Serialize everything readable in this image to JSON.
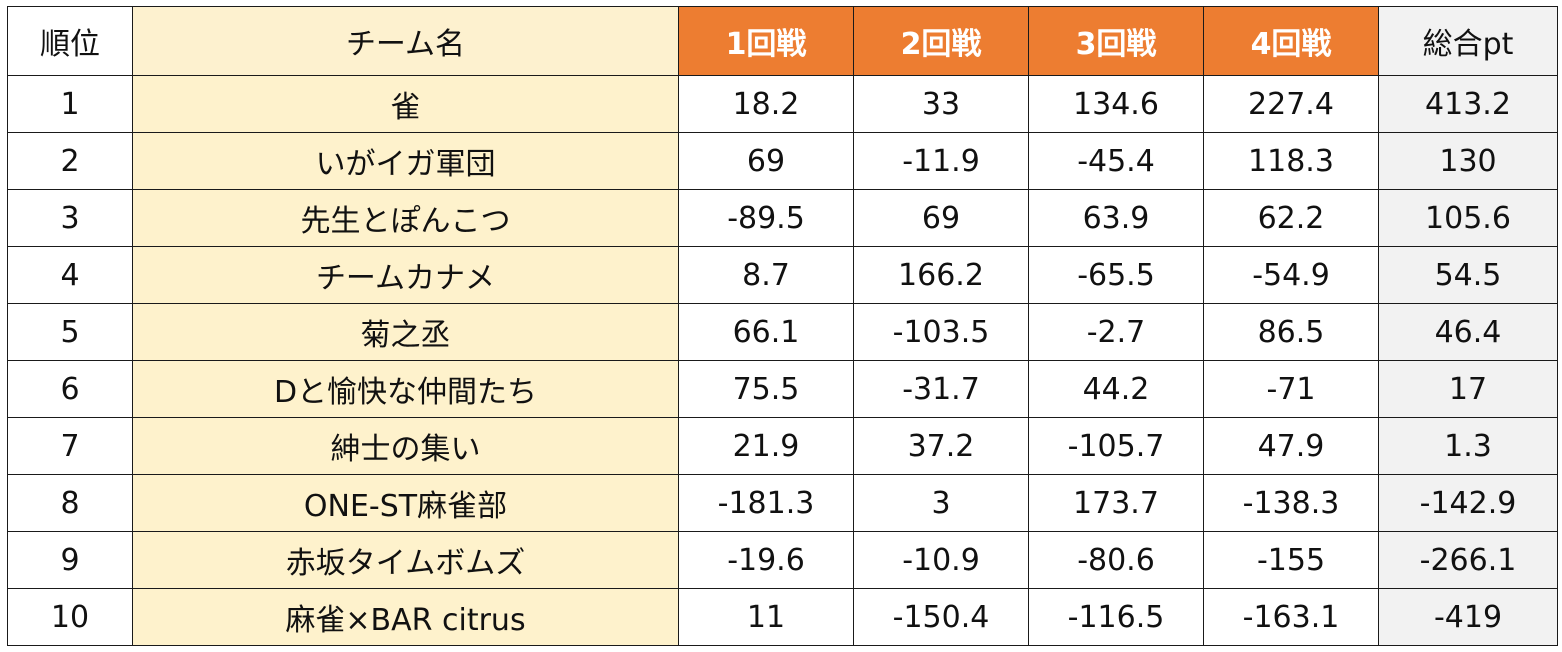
{
  "header": {
    "rank": "順位",
    "team": "チーム名",
    "rounds": [
      "1回戦",
      "2回戦",
      "3回戦",
      "4回戦"
    ],
    "total": "総合pt"
  },
  "colors": {
    "round_header_bg": "#ed7d31",
    "team_column_bg": "#fef2cc",
    "total_column_bg": "#f2f2f2"
  },
  "rows": [
    {
      "rank": "1",
      "team": "雀",
      "r1": "18.2",
      "r2": "33",
      "r3": "134.6",
      "r4": "227.4",
      "total": "413.2"
    },
    {
      "rank": "2",
      "team": "いがイガ軍団",
      "r1": "69",
      "r2": "-11.9",
      "r3": "-45.4",
      "r4": "118.3",
      "total": "130"
    },
    {
      "rank": "3",
      "team": "先生とぽんこつ",
      "r1": "-89.5",
      "r2": "69",
      "r3": "63.9",
      "r4": "62.2",
      "total": "105.6"
    },
    {
      "rank": "4",
      "team": "チームカナメ",
      "r1": "8.7",
      "r2": "166.2",
      "r3": "-65.5",
      "r4": "-54.9",
      "total": "54.5"
    },
    {
      "rank": "5",
      "team": "菊之丞",
      "r1": "66.1",
      "r2": "-103.5",
      "r3": "-2.7",
      "r4": "86.5",
      "total": "46.4"
    },
    {
      "rank": "6",
      "team": "Dと愉快な仲間たち",
      "r1": "75.5",
      "r2": "-31.7",
      "r3": "44.2",
      "r4": "-71",
      "total": "17"
    },
    {
      "rank": "7",
      "team": "紳士の集い",
      "r1": "21.9",
      "r2": "37.2",
      "r3": "-105.7",
      "r4": "47.9",
      "total": "1.3"
    },
    {
      "rank": "8",
      "team": "ONE-ST麻雀部",
      "r1": "-181.3",
      "r2": "3",
      "r3": "173.7",
      "r4": "-138.3",
      "total": "-142.9"
    },
    {
      "rank": "9",
      "team": "赤坂タイムボムズ",
      "r1": "-19.6",
      "r2": "-10.9",
      "r3": "-80.6",
      "r4": "-155",
      "total": "-266.1"
    },
    {
      "rank": "10",
      "team": "麻雀×BAR citrus",
      "r1": "11",
      "r2": "-150.4",
      "r3": "-116.5",
      "r4": "-163.1",
      "total": "-419"
    }
  ]
}
